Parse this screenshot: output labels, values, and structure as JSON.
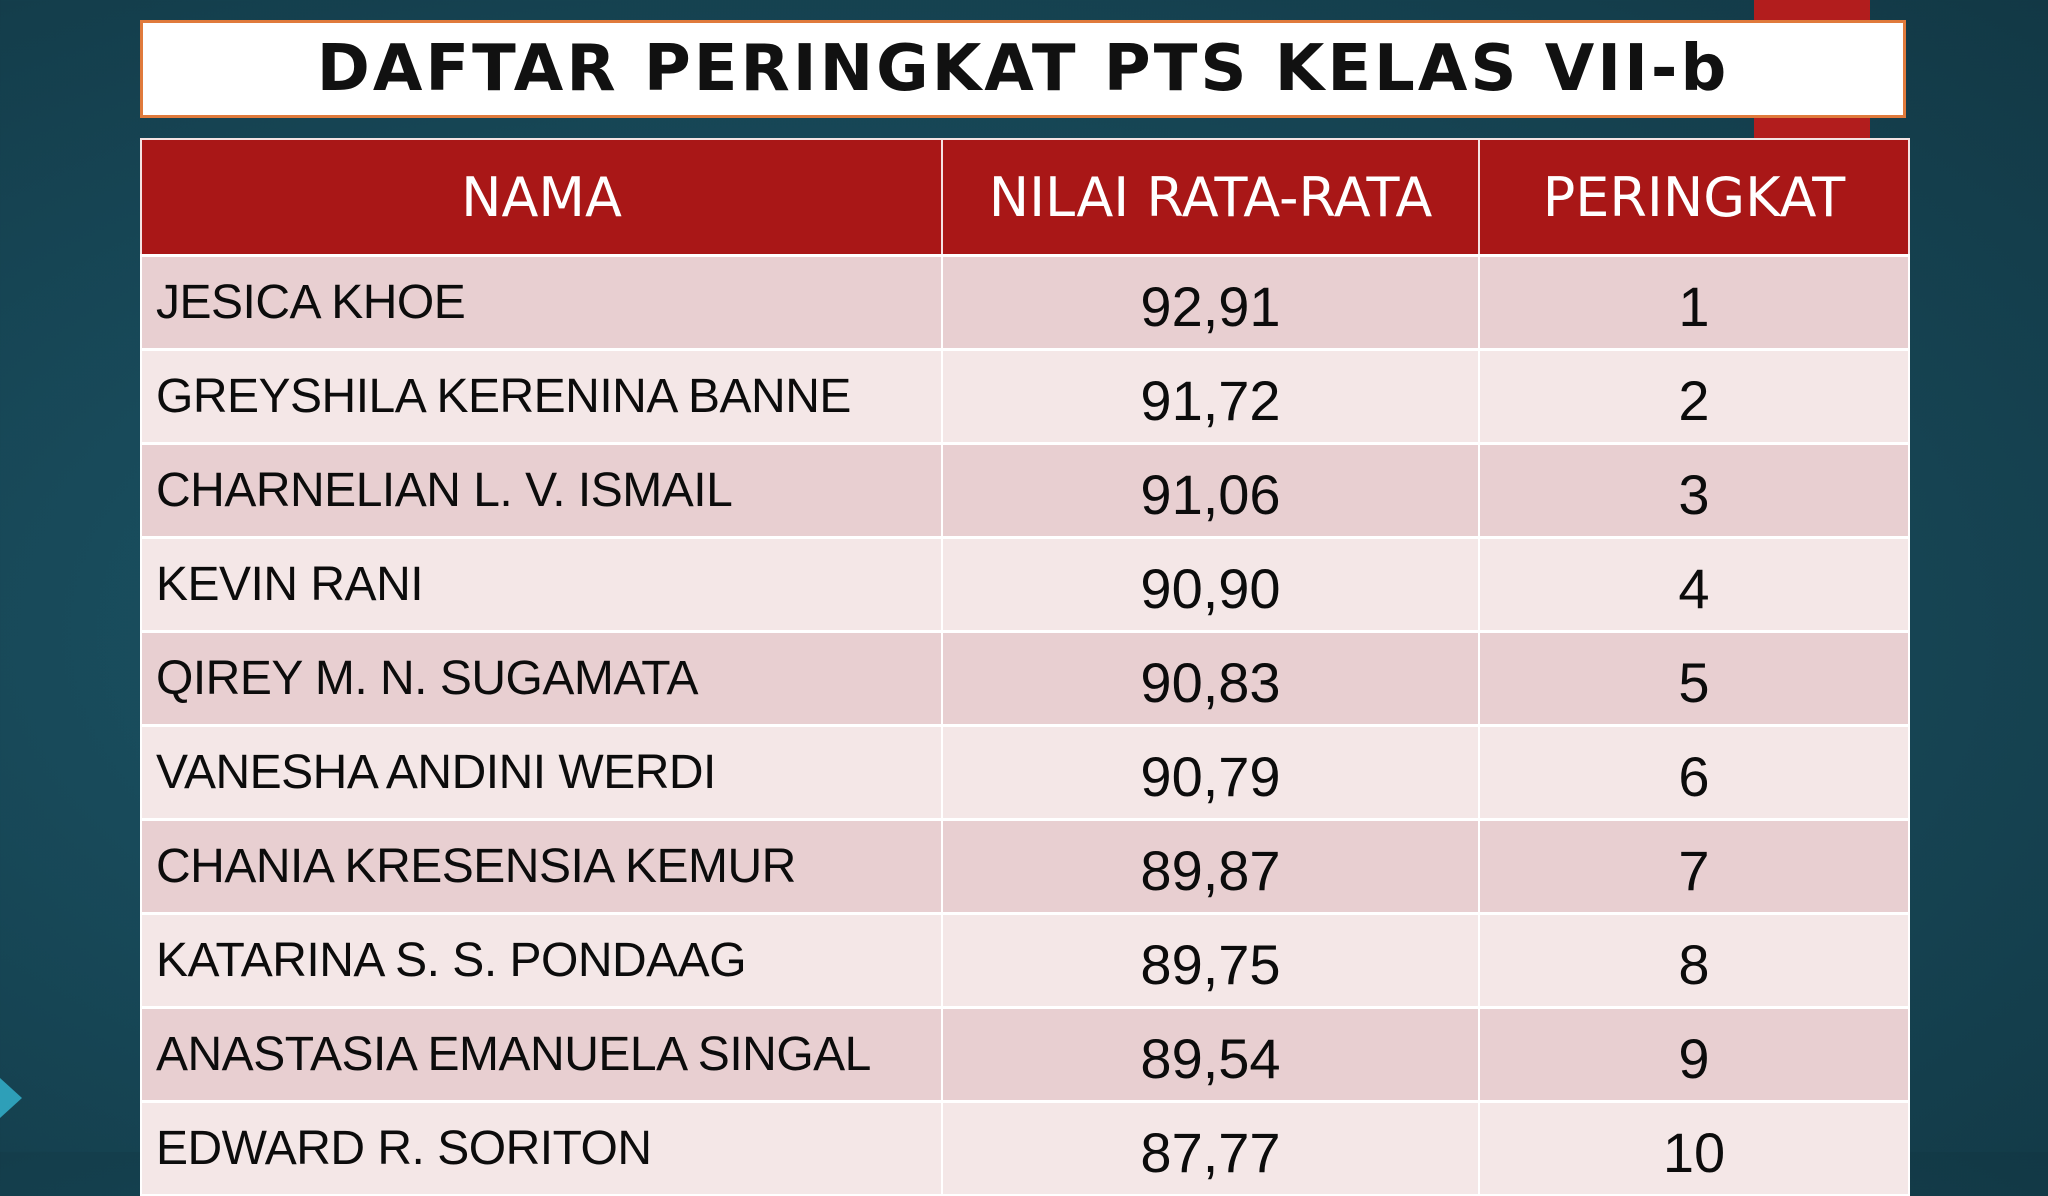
{
  "title": "DAFTAR PERINGKAT PTS KELAS VII-b",
  "table": {
    "headers": {
      "name": "NAMA",
      "score": "NILAI RATA-RATA",
      "rank": "PERINGKAT"
    },
    "rows": [
      {
        "name": "JESICA KHOE",
        "score": "92,91",
        "rank": "1"
      },
      {
        "name": "GREYSHILA KERENINA BANNE",
        "score": "91,72",
        "rank": "2"
      },
      {
        "name": "CHARNELIAN L. V. ISMAIL",
        "score": "91,06",
        "rank": "3"
      },
      {
        "name": "KEVIN RANI",
        "score": "90,90",
        "rank": "4"
      },
      {
        "name": "QIREY M. N. SUGAMATA",
        "score": "90,83",
        "rank": "5"
      },
      {
        "name": "VANESHA ANDINI WERDI",
        "score": "90,79",
        "rank": "6"
      },
      {
        "name": "CHANIA KRESENSIA KEMUR",
        "score": "89,87",
        "rank": "7"
      },
      {
        "name": "KATARINA S. S. PONDAAG",
        "score": "89,75",
        "rank": "8"
      },
      {
        "name": "ANASTASIA EMANUELA SINGAL",
        "score": "89,54",
        "rank": "9"
      },
      {
        "name": "EDWARD R. SORITON",
        "score": "87,77",
        "rank": "10"
      }
    ]
  },
  "colors": {
    "header_red": "#a91717",
    "title_border": "#e07a3c",
    "row_odd": "#e8cfd1",
    "row_even": "#f4e7e7",
    "background_teal": "#184a5a"
  }
}
